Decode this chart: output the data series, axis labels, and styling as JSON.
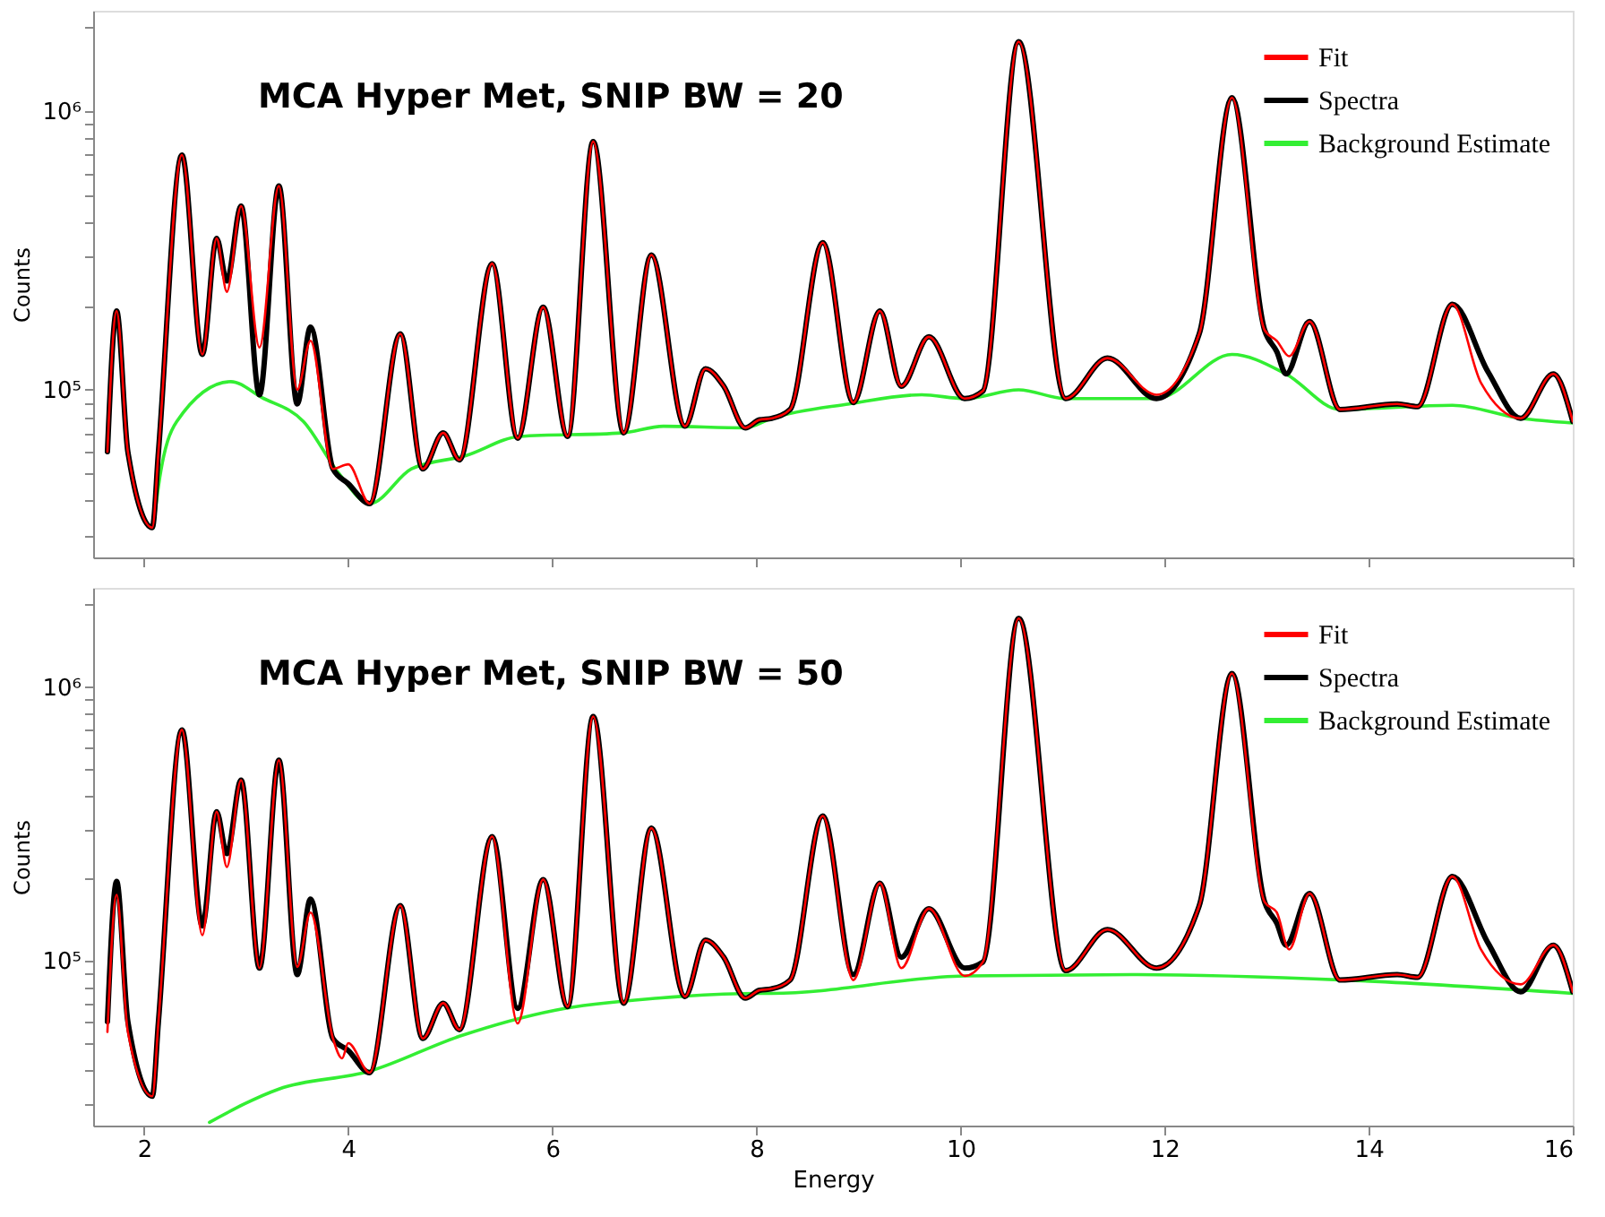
{
  "chart_data": [
    {
      "type": "line",
      "title": "MCA Hyper Met, SNIP BW = 20",
      "ylabel": "Counts",
      "log": true,
      "legend": "top right",
      "tick_labels": "y",
      "xlim": [
        1.5,
        16
      ],
      "xticks": [
        2,
        4,
        6,
        8,
        10,
        12,
        14,
        16
      ],
      "ylim": [
        25000,
        2300000
      ],
      "yticks": [
        {
          "value": 30000,
          "label": null
        },
        {
          "value": 40000,
          "label": null
        },
        {
          "value": 50000,
          "label": null
        },
        {
          "value": 60000,
          "label": null
        },
        {
          "value": 70000,
          "label": null
        },
        {
          "value": 80000,
          "label": null
        },
        {
          "value": 90000,
          "label": null
        },
        {
          "value": 100000,
          "label": "10⁵"
        },
        {
          "value": 200000,
          "label": null
        },
        {
          "value": 300000,
          "label": null
        },
        {
          "value": 400000,
          "label": null
        },
        {
          "value": 500000,
          "label": null
        },
        {
          "value": 600000,
          "label": null
        },
        {
          "value": 700000,
          "label": null
        },
        {
          "value": 800000,
          "label": null
        },
        {
          "value": 900000,
          "label": null
        },
        {
          "value": 1000000,
          "label": "10⁶"
        },
        {
          "value": 2000000,
          "label": null
        }
      ],
      "series": [
        {
          "name": "Fit",
          "color": "#ff0000",
          "x": [
            1.64,
            1.73,
            1.84,
            2.08,
            2.14,
            2.37,
            2.57,
            2.71,
            2.81,
            2.95,
            3.13,
            3.32,
            3.5,
            3.63,
            3.85,
            4.0,
            4.21,
            4.51,
            4.73,
            4.93,
            5.09,
            5.41,
            5.66,
            5.91,
            6.15,
            6.4,
            6.7,
            6.97,
            7.3,
            7.5,
            7.68,
            7.89,
            8.03,
            8.15,
            8.33,
            8.65,
            8.95,
            9.21,
            9.42,
            9.69,
            10.04,
            10.22,
            10.57,
            11.03,
            11.44,
            11.92,
            12.34,
            12.66,
            12.98,
            13.1,
            13.22,
            13.42,
            13.72,
            14.28,
            14.48,
            14.82,
            15.1,
            15.49,
            15.81,
            16.0
          ],
          "values": [
            60000,
            192000,
            60000,
            32000,
            60000,
            697000,
            134000,
            350000,
            225000,
            457000,
            142000,
            540000,
            100000,
            150000,
            52000,
            54000,
            39000,
            159000,
            52000,
            70000,
            56000,
            284000,
            67000,
            198000,
            68000,
            780000,
            70000,
            305000,
            74000,
            119000,
            103000,
            73000,
            78000,
            79000,
            85000,
            338000,
            90000,
            192000,
            103000,
            155000,
            93000,
            99000,
            1780000,
            93000,
            130000,
            96000,
            159000,
            1120000,
            164000,
            150000,
            132000,
            176000,
            85000,
            89000,
            87000,
            203000,
            106000,
            79000,
            114000,
            77000
          ]
        },
        {
          "name": "Spectra",
          "color": "#000000",
          "x": [
            1.64,
            1.73,
            1.84,
            2.08,
            2.14,
            2.37,
            2.57,
            2.71,
            2.81,
            2.95,
            3.13,
            3.32,
            3.5,
            3.63,
            3.85,
            4.0,
            4.21,
            4.51,
            4.73,
            4.93,
            5.09,
            5.41,
            5.66,
            5.91,
            6.15,
            6.4,
            6.7,
            6.97,
            7.3,
            7.5,
            7.68,
            7.89,
            8.03,
            8.15,
            8.33,
            8.65,
            8.95,
            9.21,
            9.42,
            9.69,
            10.04,
            10.22,
            10.57,
            11.03,
            11.44,
            11.92,
            12.34,
            12.66,
            12.98,
            13.1,
            13.19,
            13.42,
            13.72,
            14.28,
            14.48,
            14.82,
            15.17,
            15.49,
            15.81,
            16.0
          ],
          "values": [
            60000,
            192000,
            60000,
            32000,
            60000,
            697000,
            134000,
            350000,
            246000,
            457000,
            96000,
            540000,
            89000,
            168000,
            52000,
            46000,
            39000,
            159000,
            52000,
            70000,
            56000,
            284000,
            67000,
            198000,
            68000,
            780000,
            70000,
            305000,
            74000,
            119000,
            103000,
            73000,
            78000,
            79000,
            85000,
            338000,
            90000,
            192000,
            103000,
            155000,
            93000,
            99000,
            1780000,
            93000,
            130000,
            93000,
            159000,
            1120000,
            164000,
            137000,
            114000,
            176000,
            85000,
            89000,
            87000,
            203000,
            116000,
            79000,
            114000,
            77000
          ]
        },
        {
          "name": "Background Estimate",
          "color": "#33ee33",
          "x": [
            2.09,
            2.14,
            2.32,
            2.85,
            3.15,
            3.56,
            3.91,
            4.21,
            4.62,
            5.15,
            5.68,
            6.68,
            7.09,
            7.89,
            8.15,
            8.91,
            9.62,
            10.04,
            10.57,
            11.03,
            11.92,
            12.66,
            13.19,
            13.72,
            14.82,
            15.49,
            16.0
          ],
          "values": [
            32000,
            45000,
            77000,
            107000,
            94000,
            77000,
            50000,
            39000,
            52000,
            58000,
            68000,
            70000,
            74000,
            73000,
            79000,
            89000,
            96000,
            93000,
            100000,
            93000,
            93000,
            134000,
            114000,
            85000,
            88000,
            79000,
            76000
          ]
        }
      ]
    },
    {
      "type": "line",
      "title": "MCA Hyper Met, SNIP BW = 50",
      "xlabel": "Energy",
      "ylabel": "Counts",
      "log": true,
      "legend": "top right",
      "xlim": [
        1.5,
        16
      ],
      "xticks": [
        2,
        4,
        6,
        8,
        10,
        12,
        14,
        16
      ],
      "ylim": [
        25000,
        2300000
      ],
      "yticks": [
        {
          "value": 30000,
          "label": null
        },
        {
          "value": 40000,
          "label": null
        },
        {
          "value": 50000,
          "label": null
        },
        {
          "value": 60000,
          "label": null
        },
        {
          "value": 70000,
          "label": null
        },
        {
          "value": 80000,
          "label": null
        },
        {
          "value": 90000,
          "label": null
        },
        {
          "value": 100000,
          "label": "10⁵"
        },
        {
          "value": 200000,
          "label": null
        },
        {
          "value": 300000,
          "label": null
        },
        {
          "value": 400000,
          "label": null
        },
        {
          "value": 500000,
          "label": null
        },
        {
          "value": 600000,
          "label": null
        },
        {
          "value": 700000,
          "label": null
        },
        {
          "value": 800000,
          "label": null
        },
        {
          "value": 900000,
          "label": null
        },
        {
          "value": 1000000,
          "label": "10⁶"
        },
        {
          "value": 2000000,
          "label": null
        }
      ],
      "series": [
        {
          "name": "Fit",
          "color": "#ff0000",
          "x": [
            1.64,
            1.73,
            1.84,
            2.08,
            2.14,
            2.37,
            2.57,
            2.71,
            2.81,
            2.95,
            3.13,
            3.32,
            3.5,
            3.63,
            3.85,
            3.94,
            4.0,
            4.21,
            4.51,
            4.73,
            4.93,
            5.09,
            5.41,
            5.66,
            5.91,
            6.15,
            6.4,
            6.7,
            6.97,
            7.3,
            7.5,
            7.68,
            7.89,
            8.03,
            8.15,
            8.33,
            8.65,
            8.95,
            9.21,
            9.42,
            9.69,
            10.04,
            10.22,
            10.57,
            11.03,
            11.44,
            11.92,
            12.34,
            12.66,
            12.98,
            13.1,
            13.22,
            13.42,
            13.72,
            14.28,
            14.48,
            14.82,
            15.1,
            15.49,
            15.81,
            16.0
          ],
          "values": [
            55000,
            174000,
            55000,
            32000,
            60000,
            697000,
            124000,
            350000,
            220000,
            457000,
            94000,
            540000,
            95000,
            150000,
            52000,
            44000,
            50000,
            39000,
            159000,
            52000,
            70000,
            56000,
            284000,
            59000,
            198000,
            68000,
            780000,
            70000,
            305000,
            74000,
            119000,
            103000,
            73000,
            78000,
            79000,
            85000,
            338000,
            85000,
            192000,
            94000,
            155000,
            88000,
            99000,
            1780000,
            92000,
            130000,
            94000,
            159000,
            1120000,
            164000,
            150000,
            110000,
            176000,
            85000,
            89000,
            87000,
            203000,
            110000,
            82000,
            114000,
            77000
          ]
        },
        {
          "name": "Spectra",
          "color": "#000000",
          "x": [
            1.64,
            1.73,
            1.84,
            2.08,
            2.14,
            2.37,
            2.57,
            2.71,
            2.81,
            2.95,
            3.13,
            3.32,
            3.5,
            3.63,
            3.85,
            4.0,
            4.21,
            4.51,
            4.73,
            4.93,
            5.09,
            5.41,
            5.66,
            5.91,
            6.15,
            6.4,
            6.7,
            6.97,
            7.3,
            7.5,
            7.68,
            7.89,
            8.03,
            8.15,
            8.33,
            8.65,
            8.95,
            9.21,
            9.42,
            9.69,
            10.04,
            10.22,
            10.57,
            11.03,
            11.44,
            11.92,
            12.34,
            12.66,
            12.98,
            13.1,
            13.19,
            13.42,
            13.72,
            14.28,
            14.48,
            14.82,
            15.17,
            15.49,
            15.81,
            16.0
          ],
          "values": [
            60000,
            195000,
            60000,
            32000,
            60000,
            697000,
            134000,
            350000,
            246000,
            457000,
            94000,
            540000,
            89000,
            168000,
            52000,
            47000,
            39000,
            159000,
            52000,
            70000,
            56000,
            284000,
            67000,
            198000,
            68000,
            780000,
            70000,
            305000,
            74000,
            119000,
            103000,
            73000,
            78000,
            79000,
            85000,
            338000,
            89000,
            192000,
            103000,
            155000,
            94000,
            99000,
            1780000,
            92000,
            130000,
            94000,
            159000,
            1120000,
            164000,
            137000,
            114000,
            176000,
            85000,
            89000,
            87000,
            203000,
            116000,
            77000,
            114000,
            77000
          ]
        },
        {
          "name": "Background Estimate",
          "color": "#33ee33",
          "x": [
            2.64,
            3.32,
            4.21,
            5.09,
            6.03,
            7.04,
            8.03,
            8.15,
            10.04,
            11.68,
            13.76,
            16.0
          ],
          "values": [
            25700,
            34000,
            39500,
            53000,
            66000,
            73000,
            76000,
            76000,
            88000,
            89000,
            85000,
            76000
          ]
        }
      ]
    }
  ]
}
